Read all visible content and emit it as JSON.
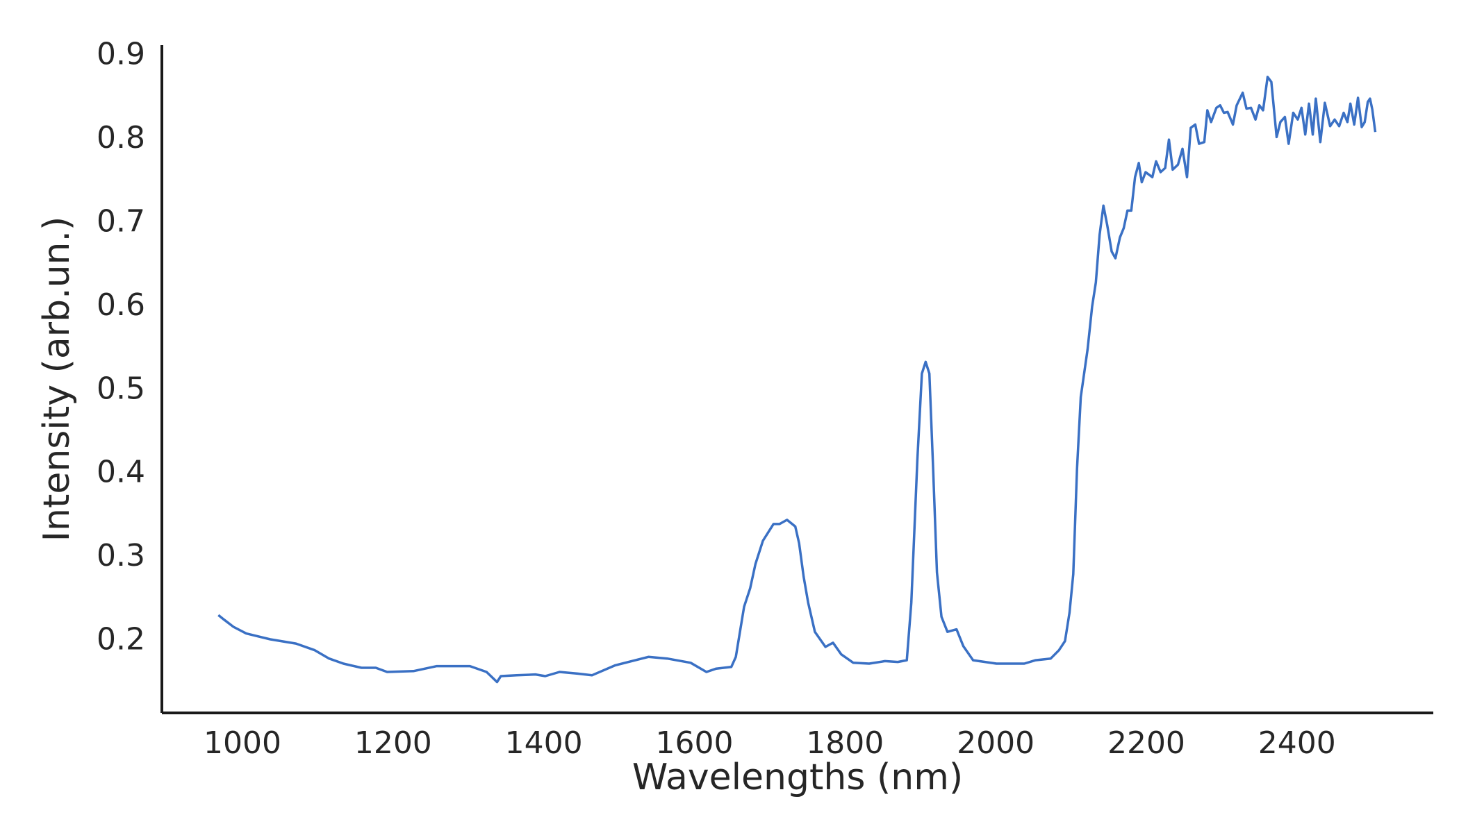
{
  "chart_data": {
    "type": "line",
    "x_label": "Wavelengths (nm)",
    "y_label": "Intensity (arb.un.)",
    "color": "#3a70c4",
    "x": [
      968,
      975,
      988,
      1005,
      1037,
      1071,
      1096,
      1115,
      1134,
      1158,
      1177,
      1192,
      1227,
      1258,
      1302,
      1324,
      1338,
      1343,
      1364,
      1389,
      1402,
      1421,
      1445,
      1464,
      1495,
      1539,
      1564,
      1595,
      1616,
      1629,
      1649,
      1655,
      1666,
      1674,
      1681,
      1691,
      1705,
      1713,
      1723,
      1734,
      1739,
      1745,
      1751,
      1760,
      1774,
      1784,
      1795,
      1811,
      1832,
      1853,
      1870,
      1882,
      1888,
      1896,
      1902,
      1907,
      1912,
      1917,
      1922,
      1928,
      1936,
      1948,
      1957,
      1970,
      2001,
      2038,
      2053,
      2073,
      2084,
      2092,
      2098,
      2103,
      2108,
      2113,
      2122,
      2128,
      2133,
      2138,
      2143,
      2148,
      2154,
      2159,
      2165,
      2170,
      2175,
      2180,
      2185,
      2190,
      2194,
      2199,
      2208,
      2213,
      2219,
      2225,
      2230,
      2235,
      2242,
      2248,
      2254,
      2259,
      2265,
      2270,
      2277,
      2281,
      2286,
      2293,
      2298,
      2303,
      2308,
      2315,
      2320,
      2328,
      2333,
      2339,
      2345,
      2350,
      2355,
      2361,
      2366,
      2373,
      2378,
      2384,
      2389,
      2395,
      2401,
      2406,
      2411,
      2416,
      2421,
      2425,
      2431,
      2437,
      2444,
      2450,
      2456,
      2462,
      2467,
      2471,
      2476,
      2481,
      2486,
      2490,
      2494,
      2497,
      2500,
      2504
    ],
    "values": [
      0.231,
      0.226,
      0.217,
      0.209,
      0.202,
      0.197,
      0.189,
      0.179,
      0.173,
      0.168,
      0.168,
      0.163,
      0.164,
      0.17,
      0.17,
      0.163,
      0.151,
      0.158,
      0.159,
      0.16,
      0.158,
      0.163,
      0.161,
      0.159,
      0.171,
      0.181,
      0.179,
      0.174,
      0.163,
      0.167,
      0.169,
      0.181,
      0.241,
      0.263,
      0.292,
      0.32,
      0.34,
      0.34,
      0.345,
      0.337,
      0.317,
      0.277,
      0.246,
      0.211,
      0.193,
      0.198,
      0.184,
      0.174,
      0.173,
      0.176,
      0.175,
      0.177,
      0.246,
      0.417,
      0.52,
      0.534,
      0.52,
      0.406,
      0.282,
      0.229,
      0.211,
      0.214,
      0.194,
      0.177,
      0.173,
      0.173,
      0.177,
      0.179,
      0.189,
      0.2,
      0.234,
      0.28,
      0.406,
      0.492,
      0.549,
      0.6,
      0.629,
      0.686,
      0.721,
      0.698,
      0.666,
      0.658,
      0.683,
      0.694,
      0.715,
      0.715,
      0.755,
      0.772,
      0.749,
      0.761,
      0.755,
      0.774,
      0.761,
      0.766,
      0.8,
      0.764,
      0.77,
      0.789,
      0.755,
      0.814,
      0.818,
      0.795,
      0.797,
      0.835,
      0.821,
      0.838,
      0.841,
      0.832,
      0.833,
      0.818,
      0.841,
      0.856,
      0.837,
      0.838,
      0.824,
      0.841,
      0.835,
      0.875,
      0.869,
      0.803,
      0.821,
      0.827,
      0.795,
      0.832,
      0.824,
      0.838,
      0.806,
      0.843,
      0.806,
      0.849,
      0.797,
      0.844,
      0.816,
      0.824,
      0.816,
      0.832,
      0.821,
      0.843,
      0.818,
      0.85,
      0.815,
      0.821,
      0.845,
      0.849,
      0.836,
      0.809
    ],
    "xlim": [
      893,
      2581
    ],
    "ylim": [
      0.114,
      0.913
    ],
    "xticks": [
      1000,
      1200,
      1400,
      1600,
      1800,
      2000,
      2200,
      2400
    ],
    "yticks": [
      0.2,
      0.3,
      0.4,
      0.5,
      0.6,
      0.7,
      0.8,
      0.9
    ]
  }
}
